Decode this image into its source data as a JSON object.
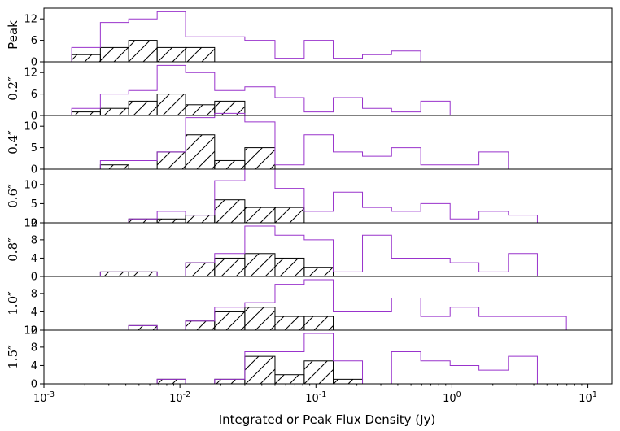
{
  "chart_data": {
    "type": "histogram",
    "xscale": "log",
    "xlim": [
      0.001,
      15
    ],
    "xlabel": "Integrated or Peak Flux Density (Jy)",
    "x_ticks": [
      {
        "base": "10",
        "exp": "-3",
        "value": 0.001
      },
      {
        "base": "10",
        "exp": "-2",
        "value": 0.01
      },
      {
        "base": "10",
        "exp": "-1",
        "value": 0.1
      },
      {
        "base": "10",
        "exp": "0",
        "value": 1
      },
      {
        "base": "10",
        "exp": "1",
        "value": 10
      }
    ],
    "colors": {
      "all": "#9933cc",
      "subset": "#000000"
    },
    "bin_edges": [
      0.0016,
      0.0026,
      0.0042,
      0.0068,
      0.011,
      0.018,
      0.03,
      0.05,
      0.082,
      0.134,
      0.22,
      0.36,
      0.59,
      0.97,
      1.58,
      2.6,
      4.25,
      6.95
    ],
    "panels": [
      {
        "label": "Peak",
        "label_style": "sans",
        "ylim": [
          0,
          15
        ],
        "yticks": [
          0,
          6,
          12
        ],
        "ytick_labels": [
          "0",
          "6",
          "12"
        ],
        "all_counts": [
          4,
          11,
          12,
          14,
          7,
          7,
          6,
          1,
          6,
          1,
          2,
          3,
          0,
          0,
          0,
          0,
          0
        ],
        "subset_counts": [
          2,
          4,
          6,
          4,
          4,
          0,
          0,
          0,
          0,
          0,
          0,
          0,
          0,
          0,
          0,
          0,
          0
        ]
      },
      {
        "label": "0.2″",
        "label_style": "serif",
        "ylim": [
          0,
          15
        ],
        "yticks": [
          0,
          6,
          12
        ],
        "ytick_labels": [
          "0",
          "6",
          "12"
        ],
        "all_counts": [
          2,
          6,
          7,
          14,
          12,
          7,
          8,
          5,
          1,
          5,
          2,
          1,
          4,
          0,
          0,
          0,
          0
        ],
        "subset_counts": [
          1,
          2,
          4,
          6,
          3,
          4,
          0,
          0,
          0,
          0,
          0,
          0,
          0,
          0,
          0,
          0,
          0
        ]
      },
      {
        "label": "0.4″",
        "label_style": "serif",
        "ylim": [
          0,
          12.5
        ],
        "yticks": [
          0,
          5,
          10
        ],
        "ytick_labels": [
          "0",
          "5",
          "10"
        ],
        "all_counts": [
          0,
          2,
          2,
          4,
          12,
          13,
          11,
          1,
          8,
          4,
          3,
          5,
          1,
          1,
          4,
          0,
          0
        ],
        "subset_counts": [
          0,
          1,
          0,
          4,
          8,
          2,
          5,
          0,
          0,
          0,
          0,
          0,
          0,
          0,
          0,
          0,
          0
        ]
      },
      {
        "label": "0.6″",
        "label_style": "serif",
        "ylim": [
          0,
          14
        ],
        "yticks": [
          0,
          5,
          10
        ],
        "ytick_labels": [
          "0",
          "5",
          "10"
        ],
        "all_counts": [
          0,
          0,
          1,
          3,
          2,
          11,
          14,
          9,
          3,
          8,
          4,
          3,
          5,
          1,
          3,
          2,
          0
        ],
        "subset_counts": [
          0,
          0,
          1,
          1,
          2,
          6,
          4,
          4,
          0,
          0,
          0,
          0,
          0,
          0,
          0,
          0,
          0
        ]
      },
      {
        "label": "0.8″",
        "label_style": "serif",
        "ylim": [
          0,
          11.7
        ],
        "yticks": [
          0,
          4,
          8
        ],
        "ytick_labels": [
          "0",
          "4",
          "8"
        ],
        "top_corner_label": "12",
        "all_counts": [
          0,
          1,
          1,
          0,
          3,
          5,
          11,
          9,
          8,
          1,
          9,
          4,
          4,
          3,
          1,
          5,
          0
        ],
        "subset_counts": [
          0,
          1,
          1,
          0,
          3,
          4,
          5,
          4,
          2,
          0,
          0,
          0,
          0,
          0,
          0,
          0,
          0
        ]
      },
      {
        "label": "1.0″",
        "label_style": "serif",
        "ylim": [
          0,
          11.7
        ],
        "yticks": [
          0,
          4,
          8
        ],
        "ytick_labels": [
          "0",
          "4",
          "8"
        ],
        "all_counts": [
          0,
          0,
          1,
          0,
          2,
          5,
          6,
          10,
          11,
          4,
          4,
          7,
          3,
          5,
          3,
          3,
          3
        ],
        "subset_counts": [
          0,
          0,
          1,
          0,
          2,
          4,
          5,
          3,
          3,
          0,
          0,
          0,
          0,
          0,
          0,
          0,
          0
        ]
      },
      {
        "label": "1.5″",
        "label_style": "serif",
        "ylim": [
          0,
          11.7
        ],
        "yticks": [
          0,
          4,
          8
        ],
        "ytick_labels": [
          "0",
          "4",
          "8"
        ],
        "top_corner_label": "12",
        "all_counts": [
          0,
          0,
          0,
          1,
          0,
          1,
          7,
          7,
          11,
          5,
          0,
          7,
          5,
          4,
          3,
          6,
          0
        ],
        "subset_counts": [
          0,
          0,
          0,
          1,
          0,
          1,
          6,
          2,
          5,
          1,
          0,
          0,
          0,
          0,
          0,
          0,
          0
        ]
      }
    ]
  }
}
